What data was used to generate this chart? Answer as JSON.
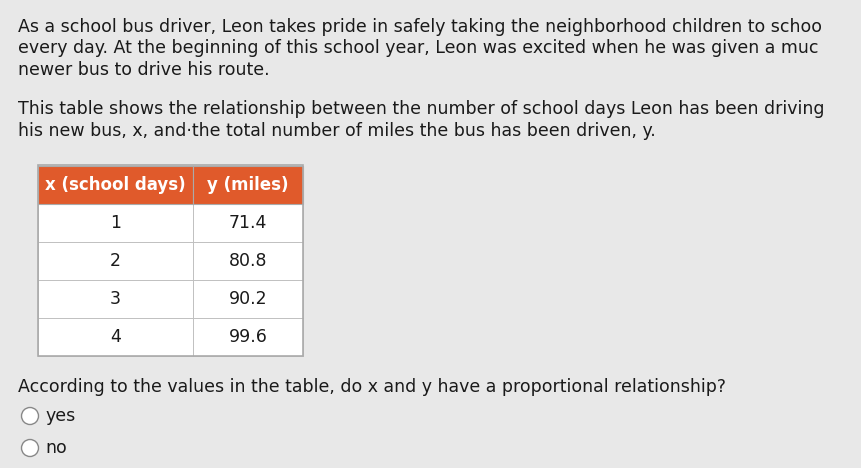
{
  "bg_color": "#e8e8e8",
  "paragraph1_lines": [
    "As a school bus driver, Leon takes pride in safely taking the neighborhood children to schoo",
    "every day. At the beginning of this school year, Leon was excited when he was given a muc",
    "newer bus to drive his route."
  ],
  "paragraph2_lines": [
    "This table shows the relationship between the number of school days Leon has been driving",
    "his new bus, x, and·the total number of miles the bus has been driven, y."
  ],
  "table_header": [
    "x (school days)",
    "y (miles)"
  ],
  "table_data": [
    [
      "1",
      "71.4"
    ],
    [
      "2",
      "80.8"
    ],
    [
      "3",
      "90.2"
    ],
    [
      "4",
      "99.6"
    ]
  ],
  "header_bg": "#e05a2b",
  "header_text_color": "#ffffff",
  "cell_bg": "#ffffff",
  "cell_border_color": "#bbbbbb",
  "table_outer_border": "#aaaaaa",
  "question_line1": "According to the values in the table, do x and y have a proportional relationship?",
  "answer_yes": "yes",
  "answer_no": "no",
  "text_color": "#1a1a1a",
  "font_size_body": 12.5,
  "font_size_table_header": 12.0,
  "font_size_table_data": 12.5,
  "font_size_question": 12.5,
  "font_size_answer": 12.5
}
